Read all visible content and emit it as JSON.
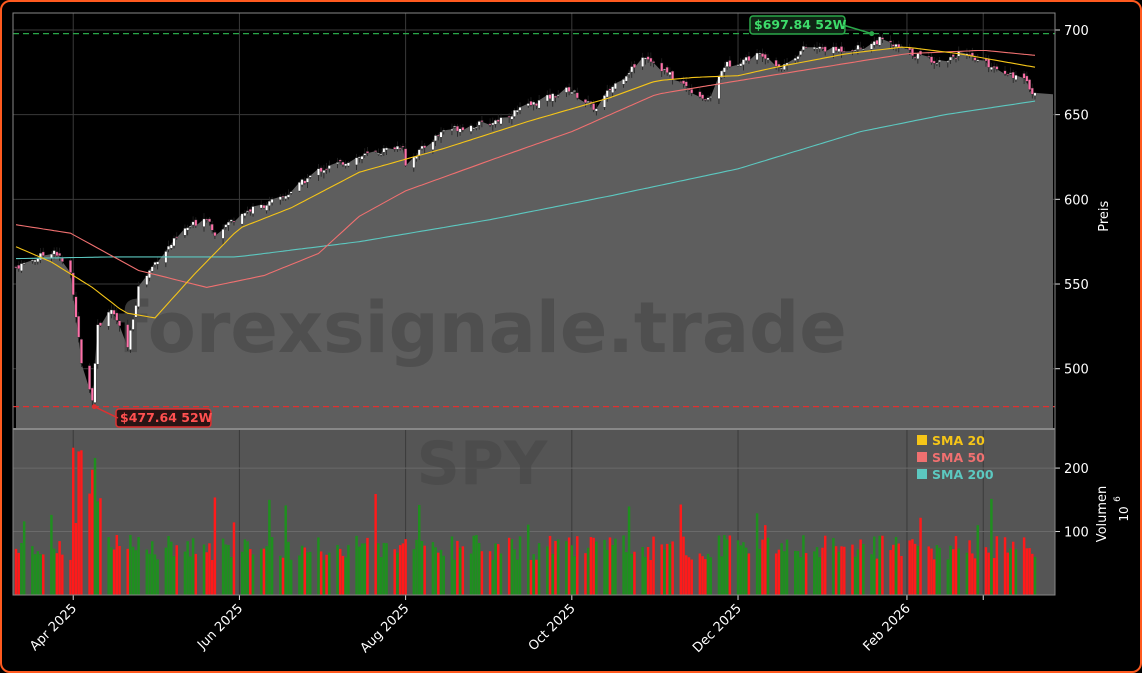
{
  "chart_data": {
    "type": "candlestick",
    "watermark": "forexsignale.trade",
    "ticker": "SPY",
    "price_axis": {
      "label": "Preis",
      "range": [
        465,
        710
      ],
      "ticks": [
        500,
        550,
        600,
        650,
        700
      ]
    },
    "volume_axis": {
      "label": "Volumen",
      "multiplier_label": "10",
      "multiplier_exp": "6",
      "range": [
        0,
        260
      ],
      "ticks": [
        100,
        200
      ]
    },
    "date_axis": {
      "range": [
        "2025-03-11",
        "2026-03-20"
      ],
      "ticks": [
        {
          "date": "2025-04-01",
          "label": "Apr 2025"
        },
        {
          "date": "2025-06-01",
          "label": "Jun 2025"
        },
        {
          "date": "2025-08-01",
          "label": "Aug 2025"
        },
        {
          "date": "2025-10-01",
          "label": "Oct 2025"
        },
        {
          "date": "2025-12-01",
          "label": "Dec 2025"
        },
        {
          "date": "2026-02-01",
          "label": "Feb 2026"
        },
        {
          "date": "2026-03-01",
          "label": ""
        }
      ]
    },
    "high_52w": {
      "value": 697.84,
      "label": "$697.84 52W",
      "date": "2026-01-22",
      "color": "#2aa84a"
    },
    "low_52w": {
      "value": 477.64,
      "label": "$477.64 52W",
      "date": "2025-04-08",
      "color": "#e03030"
    },
    "last_close": 662,
    "legend": [
      {
        "name": "SMA 20",
        "color": "#f5c518"
      },
      {
        "name": "SMA 50",
        "color": "#f07070"
      },
      {
        "name": "SMA 200",
        "color": "#5cc8c0"
      }
    ],
    "close_anchors": [
      [
        "2025-03-11",
        560
      ],
      [
        "2025-03-18",
        565
      ],
      [
        "2025-03-25",
        570
      ],
      [
        "2025-03-31",
        556
      ],
      [
        "2025-04-04",
        505
      ],
      [
        "2025-04-08",
        482
      ],
      [
        "2025-04-10",
        525
      ],
      [
        "2025-04-15",
        535
      ],
      [
        "2025-04-21",
        513
      ],
      [
        "2025-04-25",
        548
      ],
      [
        "2025-05-02",
        565
      ],
      [
        "2025-05-12",
        582
      ],
      [
        "2025-05-20",
        590
      ],
      [
        "2025-05-23",
        580
      ],
      [
        "2025-06-02",
        592
      ],
      [
        "2025-06-16",
        600
      ],
      [
        "2025-06-30",
        617
      ],
      [
        "2025-07-15",
        625
      ],
      [
        "2025-07-31",
        632
      ],
      [
        "2025-08-01",
        621
      ],
      [
        "2025-08-15",
        641
      ],
      [
        "2025-09-01",
        645
      ],
      [
        "2025-09-15",
        655
      ],
      [
        "2025-09-30",
        665
      ],
      [
        "2025-10-10",
        653
      ],
      [
        "2025-10-15",
        665
      ],
      [
        "2025-10-28",
        685
      ],
      [
        "2025-11-07",
        672
      ],
      [
        "2025-11-20",
        658
      ],
      [
        "2025-11-26",
        679
      ],
      [
        "2025-12-10",
        686
      ],
      [
        "2025-12-17",
        678
      ],
      [
        "2025-12-26",
        690
      ],
      [
        "2026-01-05",
        688
      ],
      [
        "2026-01-16",
        690
      ],
      [
        "2026-01-22",
        694
      ],
      [
        "2026-02-03",
        686
      ],
      [
        "2026-02-13",
        681
      ],
      [
        "2026-02-20",
        686
      ],
      [
        "2026-03-02",
        680
      ],
      [
        "2026-03-10",
        675
      ],
      [
        "2026-03-16",
        670
      ],
      [
        "2026-03-20",
        662
      ]
    ],
    "sma20_anchors": [
      [
        "2025-03-11",
        572
      ],
      [
        "2025-03-24",
        563
      ],
      [
        "2025-04-08",
        548
      ],
      [
        "2025-04-20",
        533
      ],
      [
        "2025-05-01",
        530
      ],
      [
        "2025-05-15",
        555
      ],
      [
        "2025-06-01",
        583
      ],
      [
        "2025-06-20",
        595
      ],
      [
        "2025-07-15",
        616
      ],
      [
        "2025-08-15",
        630
      ],
      [
        "2025-09-15",
        646
      ],
      [
        "2025-10-15",
        660
      ],
      [
        "2025-11-01",
        670
      ],
      [
        "2025-11-15",
        672
      ],
      [
        "2025-12-01",
        673
      ],
      [
        "2025-12-15",
        678
      ],
      [
        "2026-01-10",
        686
      ],
      [
        "2026-01-31",
        690
      ],
      [
        "2026-02-20",
        686
      ],
      [
        "2026-03-20",
        678
      ]
    ],
    "sma50_anchors": [
      [
        "2025-03-11",
        585
      ],
      [
        "2025-03-31",
        580
      ],
      [
        "2025-04-25",
        558
      ],
      [
        "2025-05-20",
        548
      ],
      [
        "2025-06-10",
        555
      ],
      [
        "2025-06-30",
        568
      ],
      [
        "2025-07-15",
        590
      ],
      [
        "2025-08-01",
        605
      ],
      [
        "2025-09-01",
        623
      ],
      [
        "2025-10-01",
        640
      ],
      [
        "2025-11-01",
        662
      ],
      [
        "2025-12-01",
        670
      ],
      [
        "2026-01-01",
        678
      ],
      [
        "2026-02-01",
        686
      ],
      [
        "2026-03-01",
        688
      ],
      [
        "2026-03-20",
        685
      ]
    ],
    "sma200_anchors": [
      [
        "2025-03-11",
        565
      ],
      [
        "2025-04-15",
        566
      ],
      [
        "2025-05-31",
        566
      ],
      [
        "2025-07-15",
        575
      ],
      [
        "2025-09-01",
        588
      ],
      [
        "2025-10-15",
        602
      ],
      [
        "2025-12-01",
        618
      ],
      [
        "2026-01-15",
        640
      ],
      [
        "2026-02-15",
        650
      ],
      [
        "2026-03-20",
        658
      ]
    ]
  }
}
